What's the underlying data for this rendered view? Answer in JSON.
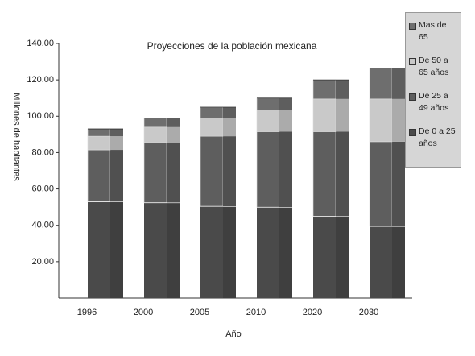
{
  "chart_data": {
    "type": "bar",
    "stacked": true,
    "title": "Proyecciones de la población mexicana",
    "x_label": "Año",
    "y_label": "Millones de habitantes",
    "categories": [
      "1996",
      "2000",
      "2005",
      "2010",
      "2020",
      "2030"
    ],
    "series": [
      {
        "name": "De 0 a 25 años",
        "color": "#4a4a4a",
        "values": [
          53,
          52.5,
          50.5,
          50,
          45,
          39.5
        ]
      },
      {
        "name": "De 25 a 49 años",
        "color": "#5e5e5e",
        "values": [
          28.5,
          33,
          38.5,
          41.5,
          46.5,
          46.5
        ]
      },
      {
        "name": "De 50 a 65 años",
        "color": "#c9c9c9",
        "values": [
          7.5,
          8.5,
          10,
          12,
          18,
          23.5
        ]
      },
      {
        "name": "Mas de 65",
        "color": "#6e6e6e",
        "values": [
          4,
          5,
          6,
          6.5,
          10.5,
          17
        ]
      }
    ],
    "ylim": [
      0,
      140
    ],
    "yticks": [
      {
        "value": 20,
        "label": "20.00"
      },
      {
        "value": 40,
        "label": "40.00"
      },
      {
        "value": 60,
        "label": "60.00"
      },
      {
        "value": 80,
        "label": "80.00"
      },
      {
        "value": 100,
        "label": "100.00"
      },
      {
        "value": 120,
        "label": "120.00"
      },
      {
        "value": 140,
        "label": "140.00"
      }
    ],
    "legend": "right"
  }
}
